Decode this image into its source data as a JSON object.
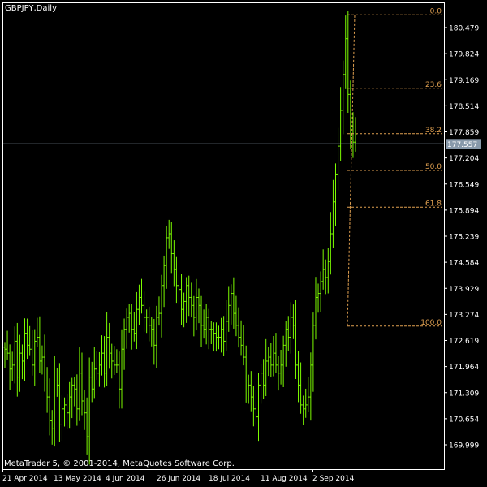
{
  "chart_data": {
    "type": "ohlc",
    "title": "GBPJPY,Daily",
    "footer": "MetaTrader 5, © 2001-2014, MetaQuotes Software Corp.",
    "ylim": [
      169.6,
      181.0
    ],
    "y_ticks": [
      "180.479",
      "179.824",
      "179.169",
      "178.514",
      "177.859",
      "177.204",
      "176.549",
      "175.894",
      "175.239",
      "174.584",
      "173.929",
      "173.274",
      "172.619",
      "171.964",
      "171.309",
      "170.654",
      "169.999"
    ],
    "x_tick_labels": [
      "21 Apr 2014",
      "13 May 2014",
      "4 Jun 2014",
      "26 Jun 2014",
      "18 Jul 2014",
      "11 Aug 2014",
      "2 Sep 2014"
    ],
    "current_price": "177.557",
    "fibonacci": {
      "high": 180.8,
      "low": 172.98,
      "levels": [
        {
          "label": "0.0",
          "ratio": 0
        },
        {
          "label": "23.6",
          "ratio": 0.236
        },
        {
          "label": "38.2",
          "ratio": 0.382
        },
        {
          "label": "50.0",
          "ratio": 0.5
        },
        {
          "label": "61.8",
          "ratio": 0.618
        },
        {
          "label": "100.0",
          "ratio": 1
        }
      ]
    },
    "bar_color": "#7CFC00",
    "price_line_color": "#8899aa",
    "fib_color": "#e0a050",
    "closes": [
      172.4,
      172.3,
      171.9,
      172.0,
      172.6,
      171.7,
      172.3,
      172.1,
      172.8,
      172.5,
      172.4,
      172.0,
      172.6,
      172.7,
      172.1,
      172.2,
      171.6,
      171.2,
      170.6,
      170.4,
      171.6,
      171.5,
      170.5,
      170.9,
      171.0,
      170.8,
      171.2,
      171.5,
      171.4,
      170.9,
      171.8,
      171.1,
      170.8,
      170.2,
      171.7,
      171.4,
      171.9,
      171.8,
      172.0,
      172.3,
      171.8,
      172.7,
      172.3,
      172.1,
      172.0,
      172.0,
      171.4,
      172.4,
      172.9,
      173.2,
      173.3,
      172.9,
      172.8,
      173.4,
      173.7,
      173.5,
      173.2,
      173.2,
      173.0,
      172.9,
      172.5,
      173.2,
      173.3,
      174.0,
      174.5,
      175.2,
      175.3,
      174.8,
      174.4,
      174.0,
      173.9,
      173.4,
      173.6,
      174.0,
      173.7,
      173.5,
      173.2,
      173.7,
      173.5,
      173.0,
      172.9,
      173.2,
      172.9,
      172.9,
      172.8,
      172.7,
      172.7,
      172.9,
      172.6,
      173.1,
      173.5,
      173.8,
      173.3,
      173.0,
      172.7,
      172.5,
      172.2,
      171.6,
      171.5,
      171.2,
      170.9,
      170.7,
      171.5,
      171.8,
      171.5,
      172.1,
      172.2,
      172.0,
      172.3,
      172.0,
      171.8,
      172.0,
      172.5,
      172.9,
      172.7,
      173.2,
      173.0,
      172.0,
      171.5,
      171.0,
      170.9,
      171.0,
      171.2,
      172.0,
      173.0,
      173.7,
      173.8,
      174.1,
      174.4,
      174.2,
      174.6,
      175.3,
      176.1,
      176.8,
      177.5,
      178.4,
      179.3,
      180.2,
      178.8,
      178.0,
      177.6,
      177.8
    ]
  }
}
